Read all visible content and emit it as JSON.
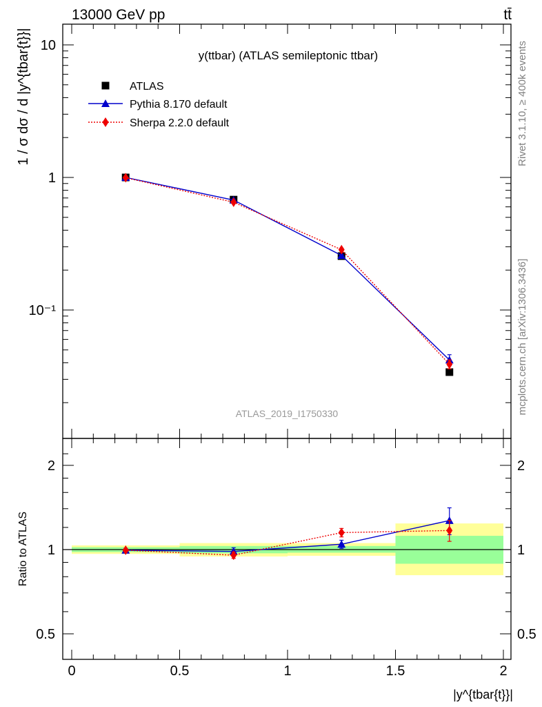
{
  "header": {
    "energy_label": "13000 GeV pp",
    "process_label": "tt̄"
  },
  "side_labels": {
    "rivet": "Rivet 3.1.10, ≥ 400k events",
    "mcplots": "mcplots.cern.ch [arXiv:1306.3436]"
  },
  "chart_data": [
    {
      "type": "line",
      "panel": "main",
      "title": "y(ttbar) (ATLAS semileptonic ttbar)",
      "watermark": "ATLAS_2019_I1750330",
      "ylabel": "1 / σ dσ / d |y^{tbar{t}}|",
      "yscale": "log",
      "ylim": [
        0.015,
        15
      ],
      "xlim": [
        -0.05,
        2.05
      ],
      "y_tick_labels": [
        "10",
        "1",
        "10⁻¹"
      ],
      "x": [
        0.25,
        0.75,
        1.25,
        1.75
      ],
      "x_bin_edges": [
        0,
        0.5,
        1.0,
        1.5,
        2.0
      ],
      "series": [
        {
          "name": "ATLAS",
          "marker": "square",
          "color": "#000000",
          "values": [
            1.0,
            0.68,
            0.255,
            0.034
          ],
          "errors": [
            0.01,
            0.01,
            0.005,
            0.0015
          ]
        },
        {
          "name": "Pythia 8.170 default",
          "marker": "triangle",
          "color": "#0000cc",
          "line": "solid",
          "values": [
            1.0,
            0.675,
            0.258,
            0.042
          ],
          "errors": [
            0.01,
            0.01,
            0.005,
            0.004
          ]
        },
        {
          "name": "Sherpa 2.2.0 default",
          "marker": "diamond",
          "color": "#ee0000",
          "line": "dotted",
          "values": [
            0.995,
            0.65,
            0.285,
            0.039
          ],
          "errors": [
            0.01,
            0.01,
            0.006,
            0.003
          ]
        }
      ],
      "legend_position": "top-left"
    },
    {
      "type": "line",
      "panel": "ratio",
      "ylabel": "Ratio to ATLAS",
      "xlabel": "|y^{tbar{t}}|",
      "ylim": [
        0.4,
        2.4
      ],
      "xlim": [
        -0.05,
        2.05
      ],
      "x_tick_labels": [
        "0",
        "0.5",
        "1",
        "1.5",
        "2"
      ],
      "y_tick_labels": [
        "2",
        "1",
        "0.5"
      ],
      "y_tick_values": [
        2,
        1,
        0.5
      ],
      "x": [
        0.25,
        0.75,
        1.25,
        1.75
      ],
      "bands": {
        "edges": [
          0,
          0.5,
          1.0,
          1.5,
          2.0
        ],
        "yellow": [
          [
            0.965,
            1.035
          ],
          [
            0.945,
            1.055
          ],
          [
            0.95,
            1.055
          ],
          [
            0.81,
            1.24
          ]
        ],
        "green": [
          [
            0.98,
            1.02
          ],
          [
            0.97,
            1.03
          ],
          [
            0.975,
            1.03
          ],
          [
            0.89,
            1.12
          ]
        ]
      },
      "series": [
        {
          "name": "Pythia 8.170 default",
          "marker": "triangle",
          "color": "#0000cc",
          "line": "solid",
          "values": [
            0.995,
            0.985,
            1.045,
            1.27
          ],
          "errors": [
            0.015,
            0.03,
            0.035,
            0.14
          ]
        },
        {
          "name": "Sherpa 2.2.0 default",
          "marker": "diamond",
          "color": "#ee0000",
          "line": "dotted",
          "values": [
            0.995,
            0.955,
            1.15,
            1.17
          ],
          "errors": [
            0.015,
            0.025,
            0.04,
            0.1
          ]
        }
      ]
    }
  ]
}
